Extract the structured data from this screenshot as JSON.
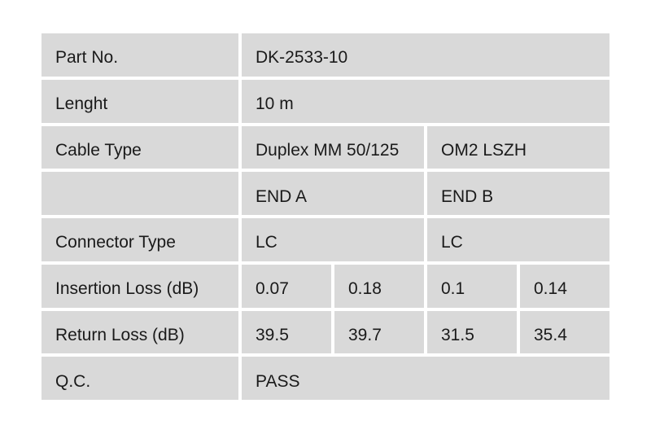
{
  "colors": {
    "page_background": "#ffffff",
    "cell_background": "#d9d9d9",
    "text": "#1a1a1a"
  },
  "table": {
    "rows": [
      {
        "label": "Part No.",
        "cells": [
          {
            "text": "DK-2533-10",
            "span": 4
          }
        ]
      },
      {
        "label": "Lenght",
        "cells": [
          {
            "text": "10 m",
            "span": 4
          }
        ]
      },
      {
        "label": "Cable Type",
        "cells": [
          {
            "text": "Duplex MM 50/125",
            "span": 2
          },
          {
            "text": "OM2 LSZH",
            "span": 2
          }
        ]
      },
      {
        "label": "",
        "cells": [
          {
            "text": "END A",
            "span": 2
          },
          {
            "text": "END B",
            "span": 2
          }
        ]
      },
      {
        "label": "Connector Type",
        "cells": [
          {
            "text": "LC",
            "span": 2
          },
          {
            "text": "LC",
            "span": 2
          }
        ]
      },
      {
        "label": "Insertion Loss (dB)",
        "cells": [
          {
            "text": "0.07",
            "span": 1
          },
          {
            "text": "0.18",
            "span": 1
          },
          {
            "text": "0.1",
            "span": 1
          },
          {
            "text": "0.14",
            "span": 1
          }
        ]
      },
      {
        "label": "Return Loss (dB)",
        "cells": [
          {
            "text": "39.5",
            "span": 1
          },
          {
            "text": "39.7",
            "span": 1
          },
          {
            "text": "31.5",
            "span": 1
          },
          {
            "text": "35.4",
            "span": 1
          }
        ]
      },
      {
        "label": "Q.C.",
        "cells": [
          {
            "text": "PASS",
            "span": 4
          }
        ]
      }
    ]
  }
}
